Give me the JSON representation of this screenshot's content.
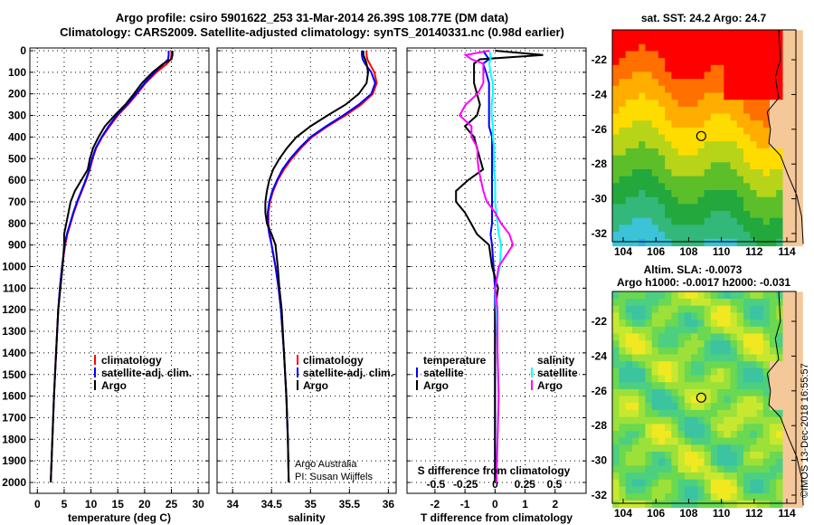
{
  "title_line1": "Argo profile: csiro 5901622_253 31-Mar-2014 26.39S 108.77E (DM data)",
  "title_line2": "Climatology: CARS2009. Satellite-adjusted climatology: synTS_20140331.nc (0.98d earlier)",
  "credit": "©IMOS 13-Dec-2018 16:55:57",
  "colors": {
    "climatology": "#ff0000",
    "satellite": "#0000ff",
    "argo": "#000000",
    "sal_satellite": "#00ffff",
    "sal_argo": "#ff00ff"
  },
  "chart_data": [
    {
      "type": "line",
      "xlabel": "temperature (deg C)",
      "ylabel": "",
      "xlim": [
        -1.4,
        32
      ],
      "ylim": [
        2045,
        0
      ],
      "xticks": [
        0,
        5,
        10,
        15,
        20,
        25,
        30
      ],
      "yticks": [
        0,
        100,
        200,
        300,
        400,
        500,
        600,
        700,
        800,
        900,
        1000,
        1100,
        1200,
        1300,
        1400,
        1500,
        1600,
        1700,
        1800,
        1900,
        2000
      ],
      "legend": [
        "climatology",
        "satellite-adj. clim.",
        "Argo"
      ],
      "legend_position": "lower-right",
      "depth": [
        0,
        20,
        40,
        60,
        100,
        150,
        200,
        250,
        300,
        350,
        400,
        450,
        500,
        550,
        600,
        650,
        700,
        750,
        800,
        850,
        900,
        1000,
        1100,
        1200,
        1400,
        1600,
        1800,
        2000
      ],
      "series": [
        {
          "name": "climatology",
          "color": "#ff0000",
          "values": [
            25.0,
            25.0,
            24.9,
            24.2,
            22.2,
            20.2,
            18.6,
            16.9,
            15.0,
            13.5,
            12.1,
            11.0,
            10.3,
            9.8,
            9.1,
            8.3,
            7.5,
            6.8,
            6.2,
            5.6,
            5.2,
            4.6,
            4.2,
            3.9,
            3.5,
            3.1,
            2.8,
            2.5
          ]
        },
        {
          "name": "satellite-adj. clim.",
          "color": "#0000ff",
          "values": [
            24.5,
            24.5,
            24.4,
            23.6,
            21.9,
            20.0,
            18.4,
            16.7,
            14.8,
            13.3,
            12.0,
            10.9,
            10.2,
            9.7,
            9.0,
            8.2,
            7.4,
            6.7,
            6.1,
            5.5,
            5.1,
            4.6,
            4.2,
            3.9,
            3.5,
            3.1,
            2.8,
            2.5
          ]
        },
        {
          "name": "Argo",
          "color": "#000000",
          "values": [
            25.2,
            25.2,
            25.0,
            23.5,
            21.5,
            19.5,
            18.0,
            16.4,
            14.4,
            12.6,
            11.4,
            10.4,
            9.8,
            9.4,
            8.2,
            7.0,
            6.2,
            5.8,
            5.4,
            5.0,
            5.0,
            4.7,
            4.3,
            3.9,
            3.5,
            3.1,
            2.8,
            2.5
          ]
        }
      ]
    },
    {
      "type": "line",
      "xlabel": "salinity",
      "xlim": [
        33.8,
        36.1
      ],
      "ylim": [
        2045,
        0
      ],
      "xticks": [
        34,
        34.5,
        35,
        35.5,
        36
      ],
      "legend": [
        "climatology",
        "satellite-adj. clim.",
        "Argo"
      ],
      "legend_position": "lower-right",
      "annotation": [
        "Argo Australia",
        "PI: Susan Wijffels"
      ],
      "depth": [
        0,
        20,
        40,
        60,
        100,
        150,
        200,
        250,
        300,
        350,
        400,
        450,
        500,
        550,
        600,
        650,
        700,
        750,
        800,
        850,
        900,
        1000,
        1100,
        1200,
        1400,
        1600,
        1800,
        2000
      ],
      "series": [
        {
          "name": "climatology",
          "color": "#ff0000",
          "values": [
            35.72,
            35.72,
            35.73,
            35.76,
            35.82,
            35.85,
            35.8,
            35.65,
            35.45,
            35.22,
            35.02,
            34.88,
            34.76,
            34.66,
            34.58,
            34.52,
            34.48,
            34.46,
            34.46,
            34.48,
            34.5,
            34.55,
            34.59,
            34.62,
            34.66,
            34.69,
            34.71,
            34.72
          ]
        },
        {
          "name": "satellite-adj. clim.",
          "color": "#0000ff",
          "values": [
            35.66,
            35.66,
            35.67,
            35.7,
            35.78,
            35.83,
            35.78,
            35.62,
            35.42,
            35.2,
            35.0,
            34.86,
            34.74,
            34.64,
            34.57,
            34.51,
            34.47,
            34.45,
            34.45,
            34.47,
            34.5,
            34.55,
            34.59,
            34.62,
            34.66,
            34.69,
            34.71,
            34.72
          ]
        },
        {
          "name": "Argo",
          "color": "#000000",
          "values": [
            35.68,
            35.68,
            35.7,
            35.72,
            35.74,
            35.72,
            35.62,
            35.45,
            35.22,
            35.0,
            34.82,
            34.7,
            34.6,
            34.52,
            34.47,
            34.44,
            34.42,
            34.42,
            34.44,
            34.5,
            34.55,
            34.58,
            34.6,
            34.63,
            34.66,
            34.69,
            34.71,
            34.72
          ]
        }
      ]
    },
    {
      "type": "line",
      "xlabel": "T difference from climatology",
      "xlabel2": "S difference from climatology",
      "xlim": [
        -2.93,
        3.03
      ],
      "ylim": [
        2045,
        0
      ],
      "xticks": [
        -2,
        -1,
        0,
        1,
        2
      ],
      "xticks2": [
        "-0.5",
        "-0.25",
        "0",
        "0.25",
        "0.5"
      ],
      "xticks2_values": [
        -0.5,
        -0.25,
        0,
        0.25,
        0.5
      ],
      "legend_temperature_title": "temperature",
      "legend_salinity_title": "salinity",
      "legend_temperature": [
        "satellite",
        "Argo"
      ],
      "legend_salinity": [
        "satellite",
        "Argo"
      ],
      "depth": [
        0,
        20,
        40,
        60,
        100,
        150,
        200,
        250,
        300,
        350,
        400,
        450,
        500,
        550,
        600,
        650,
        700,
        750,
        800,
        850,
        900,
        1000,
        1100,
        1200,
        1400,
        1600,
        1800,
        2000
      ],
      "series": [
        {
          "name": "T satellite",
          "axis": "T",
          "color": "#0000ff",
          "values": [
            -0.4,
            -0.3,
            -0.2,
            -0.4,
            -0.3,
            -0.2,
            -0.2,
            -0.2,
            -0.2,
            -0.2,
            -0.1,
            -0.1,
            -0.1,
            -0.1,
            -0.1,
            -0.1,
            -0.1,
            -0.1,
            -0.1,
            -0.15,
            -0.1,
            -0.05,
            0,
            0,
            0,
            0,
            0,
            0
          ]
        },
        {
          "name": "T Argo",
          "axis": "T",
          "color": "#000000",
          "values": [
            0.0,
            1.6,
            -0.5,
            -0.7,
            -0.7,
            -0.7,
            -0.6,
            -0.5,
            -0.6,
            -1.0,
            -0.7,
            -0.6,
            -0.5,
            -0.4,
            -0.9,
            -1.3,
            -1.3,
            -1.0,
            -0.8,
            -0.6,
            -0.2,
            -0.1,
            0.1,
            0.0,
            0.0,
            0.0,
            0.0,
            0.0
          ]
        },
        {
          "name": "S satellite",
          "axis": "S",
          "color": "#00ffff",
          "values": [
            -0.05,
            -0.04,
            -0.04,
            -0.05,
            -0.04,
            -0.02,
            -0.02,
            -0.03,
            -0.03,
            -0.02,
            -0.02,
            -0.01,
            -0.01,
            -0.01,
            0,
            0,
            0,
            0.01,
            0.02,
            0.03,
            0.05,
            0.04,
            0.0,
            0.01,
            0.02,
            0.03,
            0.02,
            0.01
          ]
        },
        {
          "name": "S Argo",
          "axis": "S",
          "color": "#ff00ff",
          "values": [
            -0.05,
            -0.25,
            -0.2,
            -0.1,
            -0.1,
            -0.1,
            -0.15,
            -0.25,
            -0.3,
            -0.2,
            -0.2,
            -0.15,
            -0.15,
            -0.14,
            -0.12,
            -0.1,
            -0.07,
            0,
            0.05,
            0.12,
            0.15,
            0.03,
            0.0,
            0.02,
            0.02,
            0.03,
            0.02,
            0.01
          ]
        }
      ]
    }
  ],
  "maps": [
    {
      "title": "sat. SST: 24.2 Argo: 24.7",
      "xticks": [
        "104",
        "106",
        "108",
        "110",
        "112",
        "114"
      ],
      "yticks": [
        "-22",
        "-24",
        "-26",
        "-28",
        "-30",
        "-32"
      ]
    },
    {
      "title_line1": "Altim. SLA: -0.0073",
      "title_line2": "Argo h1000: -0.0017 h2000: -0.031",
      "xticks": [
        "104",
        "106",
        "108",
        "110",
        "112",
        "114"
      ],
      "yticks": [
        "-22",
        "-24",
        "-26",
        "-28",
        "-30",
        "-32"
      ]
    }
  ],
  "argo_position": {
    "lon": 108.77,
    "lat": -26.39
  }
}
